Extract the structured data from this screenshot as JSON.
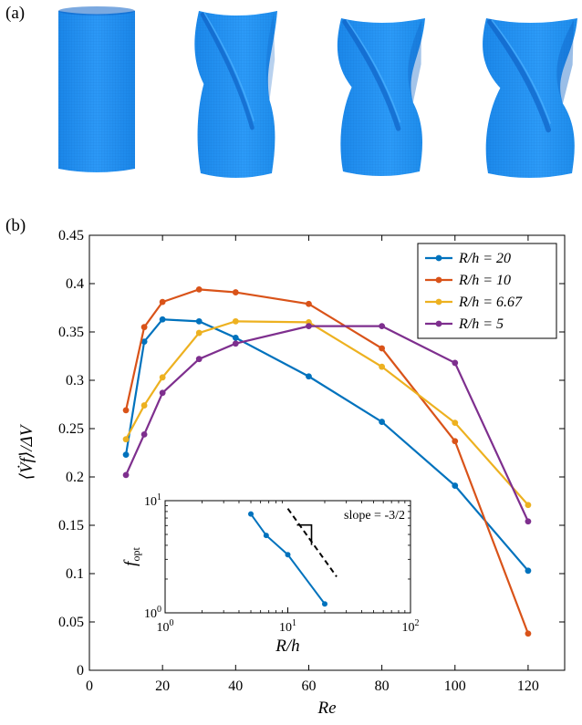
{
  "panel_a_label": "(a)",
  "panel_b_label": "(b)",
  "colors": {
    "surface": "#1f8ff0",
    "surface_dark": "#0f63c6",
    "surface_light": "#4fb2ff"
  },
  "cylinders": [
    "untwisted-cylinder",
    "twisted-cylinder-1",
    "twisted-cylinder-2",
    "twisted-cylinder-3"
  ],
  "chart_data": [
    {
      "type": "line",
      "xlabel": "Re",
      "ylabel": "⟨V̇f⟩/ΔV",
      "xlim": [
        0,
        130
      ],
      "ylim": [
        0,
        0.45
      ],
      "xticks": [
        0,
        20,
        40,
        60,
        80,
        100,
        120
      ],
      "yticks": [
        0,
        0.05,
        0.1,
        0.15,
        0.2,
        0.25,
        0.3,
        0.35,
        0.4,
        0.45
      ],
      "ytick_labels": [
        "0",
        "0.05",
        "0.1",
        "0.15",
        "0.2",
        "0.25",
        "0.3",
        "0.35",
        "0.4",
        "0.45"
      ],
      "legend_position": "top-right",
      "series": [
        {
          "name": "R/h = 20",
          "color": "#0072BD",
          "x": [
            10,
            15,
            20,
            30,
            40,
            60,
            80,
            100,
            120
          ],
          "y": [
            0.223,
            0.34,
            0.363,
            0.361,
            0.344,
            0.304,
            0.257,
            0.191,
            0.103
          ]
        },
        {
          "name": "R/h = 10",
          "color": "#D95319",
          "x": [
            10,
            15,
            20,
            30,
            40,
            60,
            80,
            100,
            120
          ],
          "y": [
            0.269,
            0.355,
            0.381,
            0.394,
            0.391,
            0.379,
            0.333,
            0.237,
            0.038
          ]
        },
        {
          "name": "R/h = 6.67",
          "color": "#EDB120",
          "x": [
            10,
            15,
            20,
            30,
            40,
            60,
            80,
            100,
            120
          ],
          "y": [
            0.239,
            0.274,
            0.303,
            0.349,
            0.361,
            0.36,
            0.314,
            0.256,
            0.171
          ]
        },
        {
          "name": "R/h = 5",
          "color": "#7E2F8E",
          "x": [
            10,
            15,
            20,
            30,
            40,
            60,
            80,
            100,
            120
          ],
          "y": [
            0.202,
            0.244,
            0.287,
            0.322,
            0.338,
            0.356,
            0.356,
            0.318,
            0.154
          ]
        }
      ]
    },
    {
      "type": "line",
      "scale": "log-log",
      "xlabel": "R/h",
      "ylabel": "f_opt",
      "xlim": [
        1,
        100
      ],
      "ylim": [
        1,
        10
      ],
      "xticks": [
        1,
        10,
        100
      ],
      "yticks": [
        1,
        10
      ],
      "annotation": "slope = -3/2",
      "series": [
        {
          "name": "",
          "color": "#0072BD",
          "x": [
            5,
            6.67,
            10,
            20
          ],
          "y": [
            7.6,
            4.9,
            3.3,
            1.2
          ]
        }
      ],
      "reference_line": {
        "style": "dashed",
        "color": "#000000",
        "slope": -1.5,
        "x": [
          10,
          25
        ],
        "y": [
          8.5,
          2.1
        ]
      }
    }
  ]
}
